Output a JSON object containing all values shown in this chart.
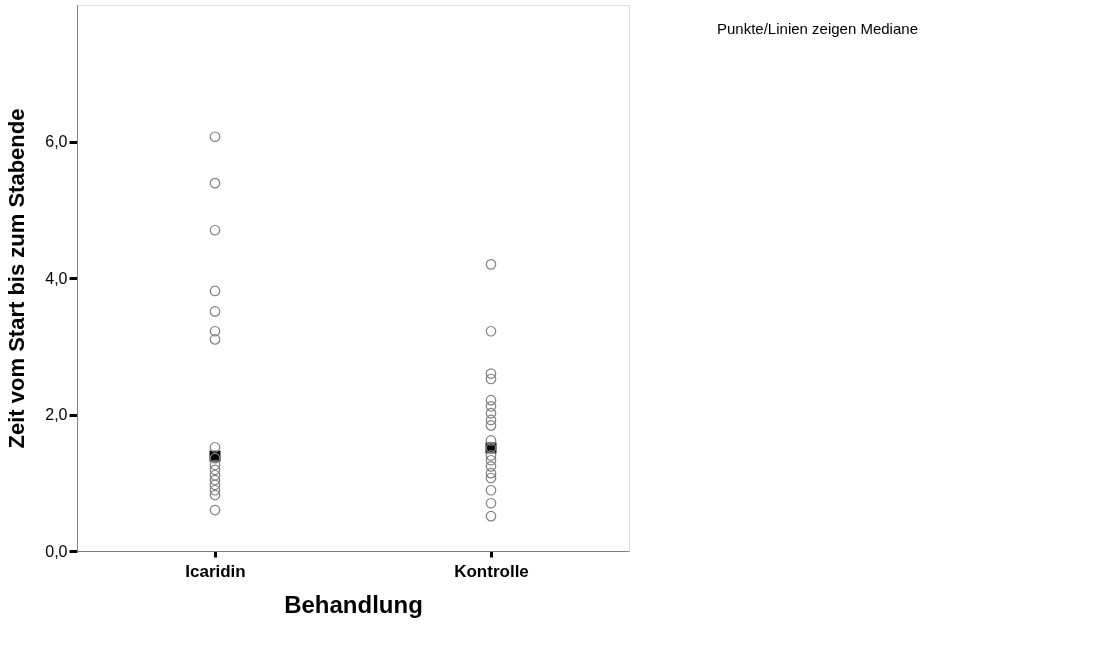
{
  "chart_data": {
    "type": "scatter",
    "xlabel": "Behandlung",
    "ylabel": "Zeit vom Start bis zum Stabende",
    "categories": [
      "Icaridin",
      "Kontrolle"
    ],
    "series": [
      {
        "color": "#808080",
        "marker": "circle",
        "x": [
          "Icaridin",
          "Icaridin",
          "Icaridin",
          "Icaridin",
          "Icaridin",
          "Icaridin",
          "Icaridin",
          "Icaridin",
          "Icaridin",
          "Icaridin",
          "Icaridin",
          "Icaridin",
          "Icaridin",
          "Icaridin",
          "Icaridin",
          "Icaridin",
          "Icaridin",
          "Kontrolle",
          "Kontrolle",
          "Kontrolle",
          "Kontrolle",
          "Kontrolle",
          "Kontrolle",
          "Kontrolle",
          "Kontrolle",
          "Kontrolle",
          "Kontrolle",
          "Kontrolle",
          "Kontrolle",
          "Kontrolle",
          "Kontrolle",
          "Kontrolle",
          "Kontrolle",
          "Kontrolle",
          "Kontrolle",
          "Kontrolle"
        ],
        "values": [
          6.07,
          5.39,
          4.7,
          3.81,
          3.51,
          3.22,
          3.1,
          1.52,
          1.36,
          1.26,
          1.19,
          1.11,
          1.04,
          0.97,
          0.89,
          0.82,
          0.6,
          4.2,
          3.22,
          2.6,
          2.52,
          2.21,
          2.12,
          2.02,
          1.92,
          1.84,
          1.62,
          1.51,
          1.4,
          1.33,
          1.24,
          1.14,
          1.07,
          0.89,
          0.7,
          0.51
        ]
      },
      {
        "color": "#000000",
        "marker": "square",
        "x": [
          "Icaridin",
          "Kontrolle"
        ],
        "values": [
          1.39,
          1.51
        ]
      }
    ],
    "ylim": [
      0,
      8
    ],
    "yticks": [
      {
        "value": 0,
        "label": "0,0"
      },
      {
        "value": 2,
        "label": "2,0"
      },
      {
        "value": 4,
        "label": "4,0"
      },
      {
        "value": 6,
        "label": "6,0"
      }
    ],
    "annotations": [
      "Punkte/Linien zeigen Mediane"
    ]
  }
}
